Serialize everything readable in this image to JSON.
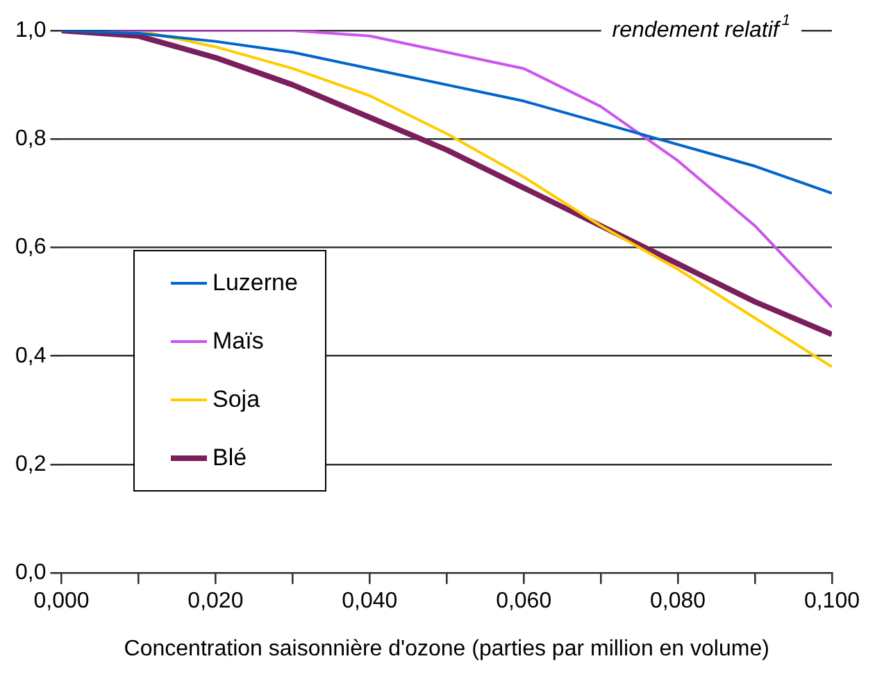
{
  "chart_data": {
    "type": "line",
    "ylabel": "rendement relatif$^{1}$",
    "xlabel": "Concentration saisonnière d'ozone (parties par million en volume)",
    "x": [
      0,
      0.01,
      0.02,
      0.03,
      0.04,
      0.05,
      0.06,
      0.07,
      0.08,
      0.09,
      0.1
    ],
    "series": [
      {
        "name": "Luzerne",
        "color": "#0066cc",
        "values": [
          1,
          0.995,
          0.98,
          0.96,
          0.93,
          0.9,
          0.87,
          0.83,
          0.79,
          0.75,
          0.7
        ]
      },
      {
        "name": "Maïs",
        "color": "#cc55ee",
        "values": [
          1,
          1,
          1,
          1,
          0.99,
          0.96,
          0.93,
          0.86,
          0.76,
          0.64,
          0.49
        ]
      },
      {
        "name": "Soja",
        "color": "#ffcc00",
        "values": [
          1,
          1,
          0.97,
          0.93,
          0.88,
          0.81,
          0.73,
          0.64,
          0.56,
          0.47,
          0.38
        ]
      },
      {
        "name": "Blé",
        "color": "#7a1f5c",
        "values": [
          1,
          0.99,
          0.95,
          0.9,
          0.84,
          0.78,
          0.71,
          0.64,
          0.57,
          0.5,
          0.44
        ]
      }
    ],
    "xlim": [
      0,
      0.1
    ],
    "xticks": [
      {
        "value": 0,
        "label": "0,000"
      },
      {
        "value": 0.01,
        "label": null
      },
      {
        "value": 0.02,
        "label": "0,020"
      },
      {
        "value": 0.03,
        "label": null
      },
      {
        "value": 0.04,
        "label": "0,040"
      },
      {
        "value": 0.05,
        "label": null
      },
      {
        "value": 0.06,
        "label": "0,060"
      },
      {
        "value": 0.07,
        "label": null
      },
      {
        "value": 0.08,
        "label": "0,080"
      },
      {
        "value": 0.09,
        "label": null
      },
      {
        "value": 0.1,
        "label": "0,100"
      }
    ],
    "ylim": [
      0,
      1
    ],
    "yticks": [
      {
        "value": 0,
        "label": "0,0"
      },
      {
        "value": 0.2,
        "label": "0,2"
      },
      {
        "value": 0.4,
        "label": "0,4"
      },
      {
        "value": 0.6,
        "label": "0,6"
      },
      {
        "value": 0.8,
        "label": "0,8"
      },
      {
        "value": 1,
        "label": "1,0"
      }
    ],
    "grid": "y",
    "legend": "left",
    "marker": "none",
    "line_style": "solid"
  }
}
